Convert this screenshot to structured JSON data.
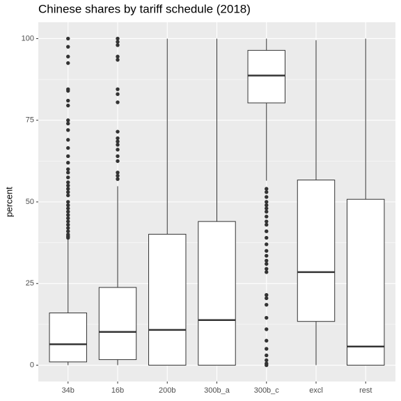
{
  "chart_data": {
    "type": "box",
    "title": "Chinese shares by tariff schedule (2018)",
    "y_label": "percent",
    "categories": [
      "34b",
      "16b",
      "200b",
      "300b_a",
      "300b_c",
      "excl",
      "rest"
    ],
    "min": [
      0,
      0,
      0,
      0,
      56.5,
      0,
      0
    ],
    "q1": [
      1,
      1.7,
      0,
      0,
      80.3,
      13.4,
      0
    ],
    "median": [
      6.4,
      10.2,
      10.8,
      13.8,
      88.7,
      28.5,
      5.7
    ],
    "q3": [
      16,
      23.8,
      40.1,
      44,
      96.4,
      56.7,
      50.8
    ],
    "max": [
      38.5,
      54.8,
      100,
      100,
      100,
      99.5,
      100
    ],
    "outliers": [
      [
        100,
        97.5,
        94.5,
        92.5,
        84.5,
        84,
        81,
        79.5,
        75,
        74,
        72,
        69,
        66.5,
        64,
        62,
        60,
        59,
        57.5,
        56,
        55,
        54,
        53,
        52,
        50,
        49,
        48,
        47,
        46,
        45,
        44,
        43,
        42,
        41,
        40,
        39.5,
        39
      ],
      [
        100,
        99,
        98,
        94.5,
        93.5,
        84.5,
        83,
        80.5,
        71.5,
        69.5,
        68.5,
        67.5,
        66,
        64,
        62.5,
        59,
        58,
        57
      ],
      [],
      [],
      [
        54,
        53,
        51.5,
        50,
        49,
        48,
        47,
        45.5,
        44,
        43,
        41,
        39,
        37,
        35,
        33.5,
        32,
        31,
        29.5,
        28.5,
        21.5,
        20.5,
        18.5,
        14.5,
        11,
        7.5,
        5,
        3,
        1.5,
        0.5,
        0
      ],
      [],
      []
    ],
    "ylim": [
      -5,
      105
    ],
    "yticks": [
      0,
      25,
      50,
      75,
      100
    ],
    "grid": true
  }
}
